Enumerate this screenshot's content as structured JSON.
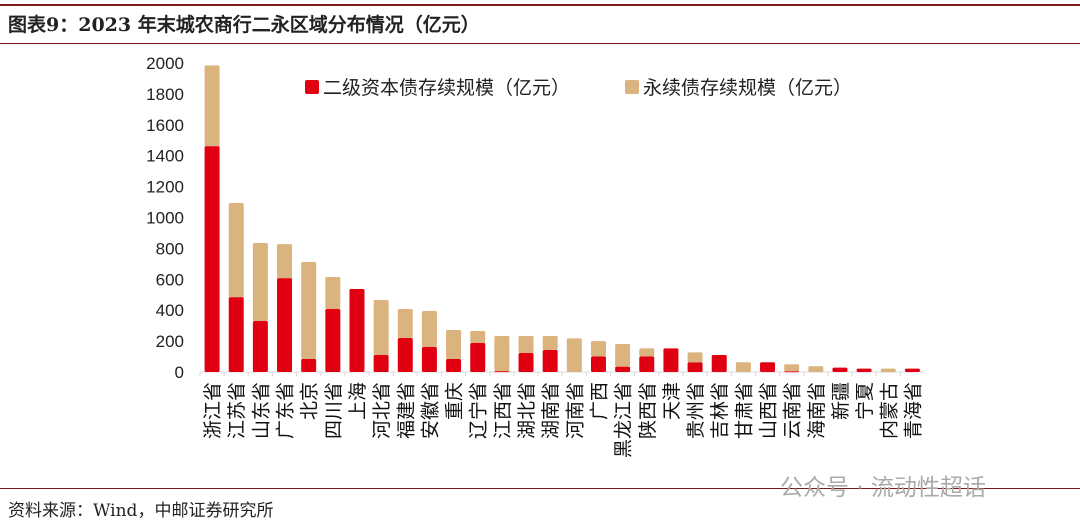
{
  "title": "图表9：2023 年末城农商行二永区域分布情况（亿元）",
  "source": "资料来源：Wind，中邮证券研究所",
  "watermark": "公众号 · 流动性超话",
  "chart_data": {
    "type": "bar",
    "stacked": true,
    "categories": [
      "浙江省",
      "江苏省",
      "山东省",
      "广东省",
      "北京",
      "四川省",
      "上海",
      "河北省",
      "福建省",
      "安徽省",
      "重庆",
      "辽宁省",
      "江西省",
      "湖北省",
      "湖南省",
      "河南省",
      "广西",
      "黑龙江省",
      "陕西省",
      "天津",
      "贵州省",
      "吉林省",
      "甘肃省",
      "山西省",
      "云南省",
      "海南省",
      "新疆",
      "宁夏",
      "内蒙古",
      "青海省"
    ],
    "series": [
      {
        "name": "二级资本债存续规模（亿元）",
        "color": "#e10012",
        "values": [
          1462,
          485,
          330,
          608,
          84,
          408,
          537,
          110,
          220,
          162,
          84,
          188,
          6,
          123,
          142,
          0,
          100,
          35,
          100,
          153,
          63,
          110,
          0,
          63,
          5,
          0,
          28,
          22,
          0,
          22
        ]
      },
      {
        "name": "永续债存续规模（亿元）",
        "color": "#dbb37e",
        "values": [
          523,
          609,
          505,
          220,
          628,
          207,
          0,
          356,
          188,
          233,
          188,
          77,
          227,
          110,
          91,
          218,
          100,
          146,
          53,
          0,
          64,
          0,
          63,
          0,
          45,
          37,
          0,
          0,
          22,
          0
        ]
      }
    ],
    "ylim": [
      0,
      2000
    ],
    "yticks": [
      0,
      200,
      400,
      600,
      800,
      1000,
      1200,
      1400,
      1600,
      1800,
      2000
    ],
    "grid": false,
    "legend": "top"
  }
}
